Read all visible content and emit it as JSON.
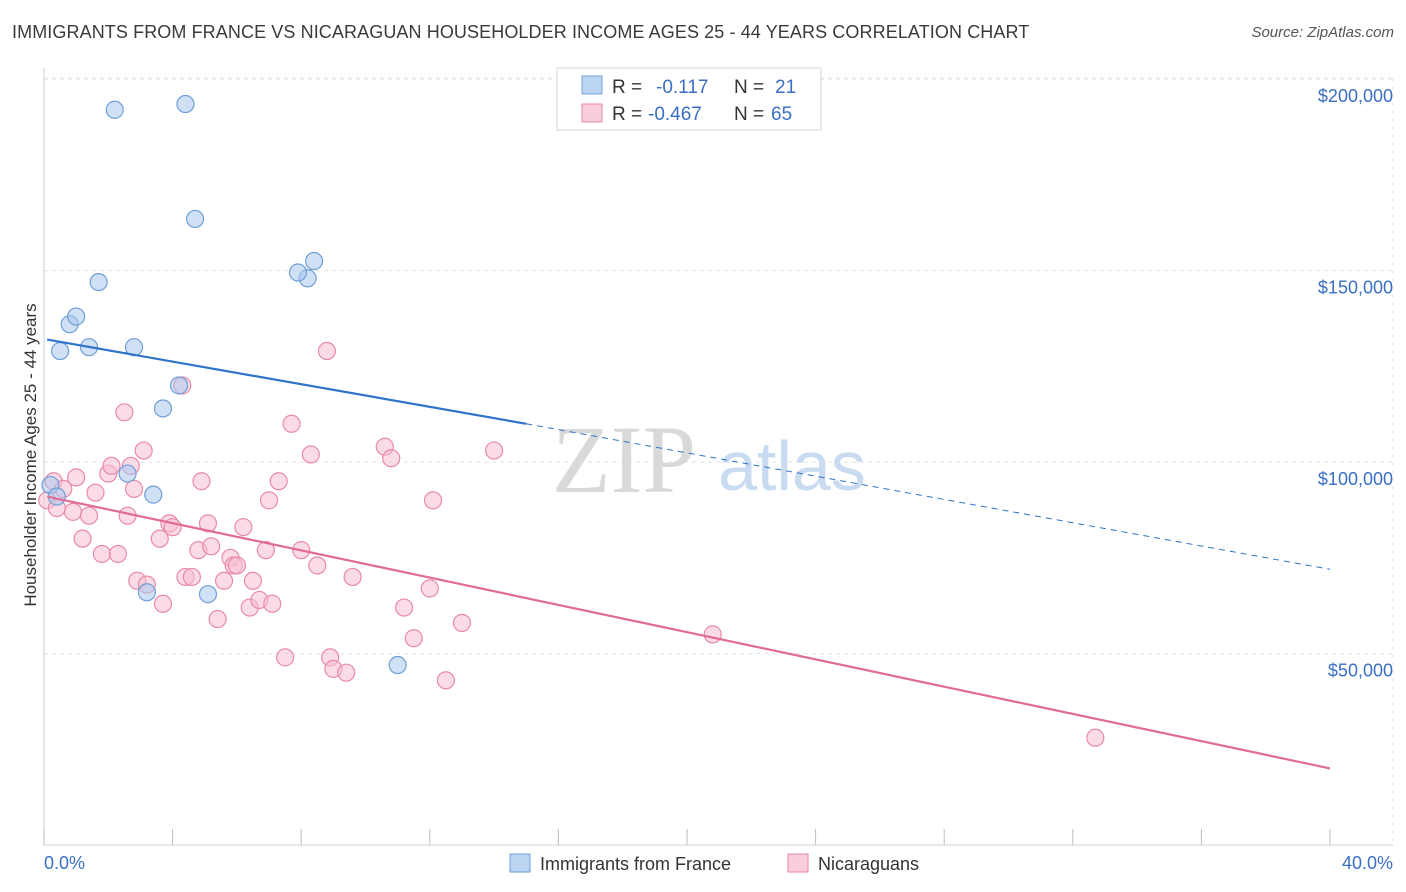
{
  "header": {
    "title": "IMMIGRANTS FROM FRANCE VS NICARAGUAN HOUSEHOLDER INCOME AGES 25 - 44 YEARS CORRELATION CHART",
    "source": "Source: ZipAtlas.com"
  },
  "watermark": {
    "zip": "ZIP",
    "atlas": "atlas"
  },
  "legend": {
    "rows": [
      {
        "r_label": "R =",
        "r_value": "-0.117",
        "n_label": "N =",
        "n_value": "21"
      },
      {
        "r_label": "R =",
        "r_value": "-0.467",
        "n_label": "N =",
        "n_value": "65"
      }
    ]
  },
  "chart_data": {
    "type": "scatter",
    "title": "IMMIGRANTS FROM FRANCE VS NICARAGUAN HOUSEHOLDER INCOME AGES 25 - 44 YEARS CORRELATION CHART",
    "xlabel": "",
    "ylabel": "Householder Income Ages 25 - 44 years",
    "xlim": [
      0,
      40
    ],
    "ylim": [
      0,
      205000
    ],
    "x_tick_labels": {
      "min": "0.0%",
      "max": "40.0%"
    },
    "y_ticks": [
      {
        "value": 50000,
        "label": "$50,000"
      },
      {
        "value": 100000,
        "label": "$100,000"
      },
      {
        "value": 150000,
        "label": "$150,000"
      },
      {
        "value": 200000,
        "label": "$200,000"
      }
    ],
    "grid": true,
    "legend_placement": "top-center",
    "series": [
      {
        "name": "Immigrants from France",
        "color": "#a9c8ee",
        "edge": "#6f9fd8",
        "line_color": "#2f74c9",
        "r": -0.117,
        "n": 21,
        "trend": {
          "x0": 0.1,
          "y0": 132000,
          "x1": 15.0,
          "y1": 110000,
          "x_dash_end": 40.0,
          "y_dash_end": 72000
        },
        "points": [
          [
            2.2,
            192000
          ],
          [
            4.4,
            193500
          ],
          [
            4.7,
            163500
          ],
          [
            1.7,
            147000
          ],
          [
            8.4,
            152500
          ],
          [
            8.2,
            148000
          ],
          [
            7.9,
            149500
          ],
          [
            0.8,
            136000
          ],
          [
            1.0,
            138000
          ],
          [
            1.4,
            130000
          ],
          [
            2.8,
            130000
          ],
          [
            0.5,
            129000
          ],
          [
            4.2,
            120000
          ],
          [
            3.7,
            114000
          ],
          [
            2.6,
            97000
          ],
          [
            3.4,
            91500
          ],
          [
            0.2,
            94000
          ],
          [
            0.4,
            91000
          ],
          [
            3.2,
            66000
          ],
          [
            5.1,
            65500
          ],
          [
            11.0,
            47000
          ]
        ]
      },
      {
        "name": "Nicaraguans",
        "color": "#f7bfd1",
        "edge": "#e88aa8",
        "line_color": "#e06b96",
        "r": -0.467,
        "n": 65,
        "trend": {
          "x0": 0.1,
          "y0": 91000,
          "x1": 40.0,
          "y1": 20000
        },
        "points": [
          [
            0.1,
            90000
          ],
          [
            0.3,
            95000
          ],
          [
            0.6,
            93000
          ],
          [
            0.9,
            87000
          ],
          [
            1.2,
            80000
          ],
          [
            1.4,
            86000
          ],
          [
            1.6,
            92000
          ],
          [
            1.8,
            76000
          ],
          [
            2.0,
            97000
          ],
          [
            2.1,
            99000
          ],
          [
            2.3,
            76000
          ],
          [
            2.5,
            113000
          ],
          [
            2.6,
            86000
          ],
          [
            2.7,
            99000
          ],
          [
            2.9,
            69000
          ],
          [
            3.1,
            103000
          ],
          [
            3.2,
            68000
          ],
          [
            3.6,
            80000
          ],
          [
            3.7,
            63000
          ],
          [
            3.9,
            84000
          ],
          [
            4.0,
            83000
          ],
          [
            4.3,
            120000
          ],
          [
            4.4,
            70000
          ],
          [
            4.6,
            70000
          ],
          [
            4.8,
            77000
          ],
          [
            4.9,
            95000
          ],
          [
            5.1,
            84000
          ],
          [
            5.2,
            78000
          ],
          [
            5.4,
            59000
          ],
          [
            5.6,
            69000
          ],
          [
            5.8,
            75000
          ],
          [
            5.9,
            73000
          ],
          [
            6.0,
            73000
          ],
          [
            6.2,
            83000
          ],
          [
            6.4,
            62000
          ],
          [
            6.5,
            69000
          ],
          [
            6.7,
            64000
          ],
          [
            6.9,
            77000
          ],
          [
            7.0,
            90000
          ],
          [
            7.1,
            63000
          ],
          [
            7.3,
            95000
          ],
          [
            7.5,
            49000
          ],
          [
            7.7,
            110000
          ],
          [
            8.0,
            77000
          ],
          [
            8.3,
            102000
          ],
          [
            8.5,
            73000
          ],
          [
            8.8,
            129000
          ],
          [
            8.9,
            49000
          ],
          [
            9.0,
            46000
          ],
          [
            9.4,
            45000
          ],
          [
            9.6,
            70000
          ],
          [
            10.6,
            104000
          ],
          [
            10.8,
            101000
          ],
          [
            11.2,
            62000
          ],
          [
            11.5,
            54000
          ],
          [
            12.1,
            90000
          ],
          [
            12.0,
            67000
          ],
          [
            12.5,
            43000
          ],
          [
            13.0,
            58000
          ],
          [
            14.0,
            103000
          ],
          [
            20.8,
            55000
          ],
          [
            32.7,
            28000
          ],
          [
            1.0,
            96000
          ],
          [
            2.8,
            93000
          ],
          [
            0.4,
            88000
          ]
        ]
      }
    ]
  }
}
